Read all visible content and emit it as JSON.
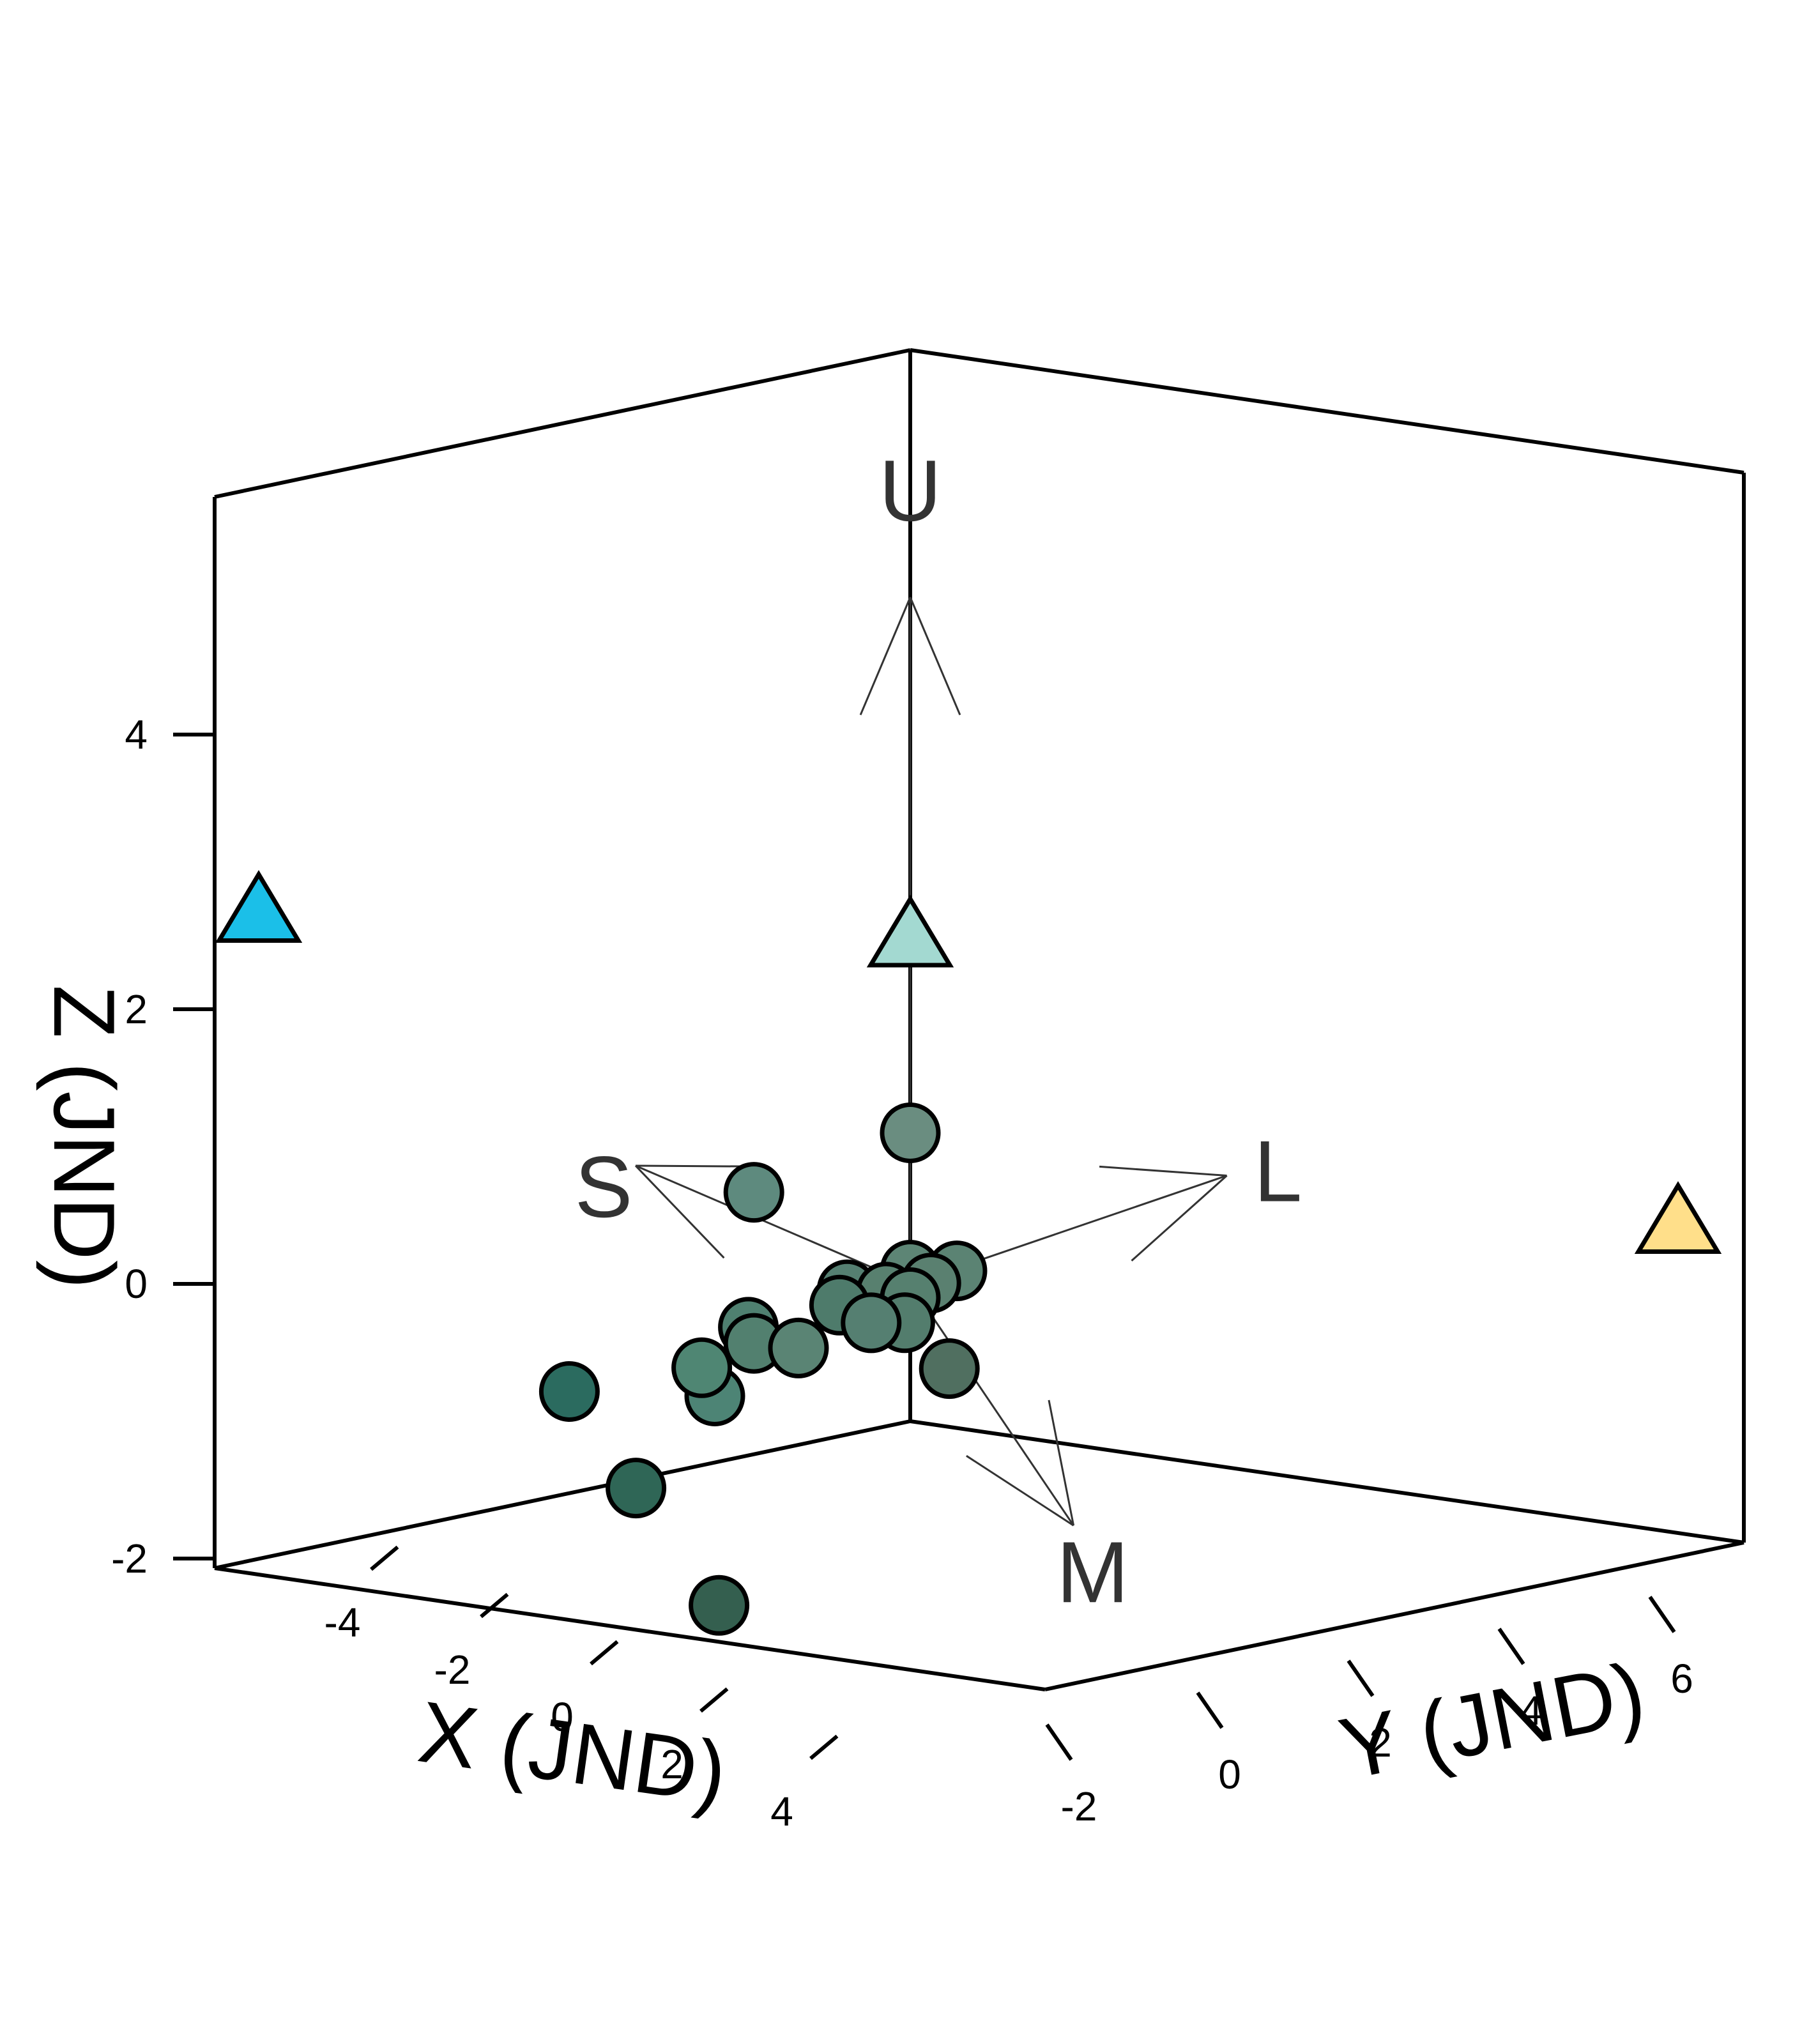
{
  "chart_data": {
    "type": "scatter",
    "subtype": "3d-scatter",
    "title": "",
    "xlabel": "X (JND)",
    "ylabel": "Y (JND)",
    "zlabel": "Z (JND)",
    "xlim": [
      -5,
      5
    ],
    "ylim": [
      -4,
      7
    ],
    "zlim": [
      -2,
      6
    ],
    "x_ticks": [
      "-4",
      "-2",
      "0",
      "2",
      "4"
    ],
    "y_ticks": [
      "-2",
      "0",
      "2",
      "4",
      "6"
    ],
    "z_ticks": [
      "-2",
      "0",
      "2",
      "4"
    ],
    "grid": false,
    "receptor_vectors": [
      {
        "label": "U",
        "x": 0.0,
        "y": 0.0,
        "z": 5.0
      },
      {
        "label": "L",
        "x": 0.0,
        "y": 4.2,
        "z": 0.3
      },
      {
        "label": "M",
        "x": 1.6,
        "y": 1.0,
        "z": -1.6
      },
      {
        "label": "S",
        "x": -5.0,
        "y": 0.0,
        "z": 0.0
      }
    ],
    "series": [
      {
        "marker": "circle",
        "points": [
          {
            "x": 0.0,
            "y": 0.0,
            "z": 1.1,
            "color": "#6a8d80"
          },
          {
            "x": -1.2,
            "y": -1.2,
            "z": 0.6,
            "color": "#5e8a7e"
          },
          {
            "x": 0.0,
            "y": 0.0,
            "z": 0.1,
            "color": "#5d8575"
          },
          {
            "x": 0.3,
            "y": 0.4,
            "z": 0.1,
            "color": "#5b8373"
          },
          {
            "x": 0.1,
            "y": 0.2,
            "z": 0.0,
            "color": "#5a8070"
          },
          {
            "x": -0.6,
            "y": -0.4,
            "z": -0.1,
            "color": "#557f71"
          },
          {
            "x": -0.3,
            "y": -0.1,
            "z": -0.1,
            "color": "#58806f"
          },
          {
            "x": 0.0,
            "y": 0.0,
            "z": -0.1,
            "color": "#56806f"
          },
          {
            "x": -0.6,
            "y": -0.5,
            "z": -0.2,
            "color": "#4e7b6b"
          },
          {
            "x": -0.1,
            "y": 0.0,
            "z": -0.3,
            "color": "#537d6d"
          },
          {
            "x": -0.3,
            "y": -0.3,
            "z": -0.3,
            "color": "#557f71"
          },
          {
            "x": -1.3,
            "y": -1.2,
            "z": -0.4,
            "color": "#4f8070"
          },
          {
            "x": -1.2,
            "y": -1.2,
            "z": -0.5,
            "color": "#52806f"
          },
          {
            "x": -0.8,
            "y": -0.9,
            "z": -0.5,
            "color": "#5a8474"
          },
          {
            "x": 0.3,
            "y": 0.3,
            "z": -0.6,
            "color": "#506f60"
          },
          {
            "x": -1.5,
            "y": -1.5,
            "z": -0.9,
            "color": "#4d8475"
          },
          {
            "x": -1.6,
            "y": -1.6,
            "z": -0.7,
            "color": "#4f8673"
          },
          {
            "x": -2.5,
            "y": -2.7,
            "z": -0.9,
            "color": "#2b6b5f"
          },
          {
            "x": -1.7,
            "y": -2.4,
            "z": -1.5,
            "color": "#2f6656"
          },
          {
            "x": -0.6,
            "y": -2.1,
            "z": -2.2,
            "color": "#345f4f"
          }
        ]
      },
      {
        "marker": "triangle",
        "points": [
          {
            "x": -5.0,
            "y": -5.0,
            "z": 2.4,
            "color": "#1bbfe8"
          },
          {
            "x": 0.0,
            "y": 0.0,
            "z": 2.5,
            "color": "#a3d9d1"
          },
          {
            "x": 3.0,
            "y": 8.0,
            "z": 0.0,
            "color": "#ffdf8a"
          }
        ]
      }
    ]
  }
}
